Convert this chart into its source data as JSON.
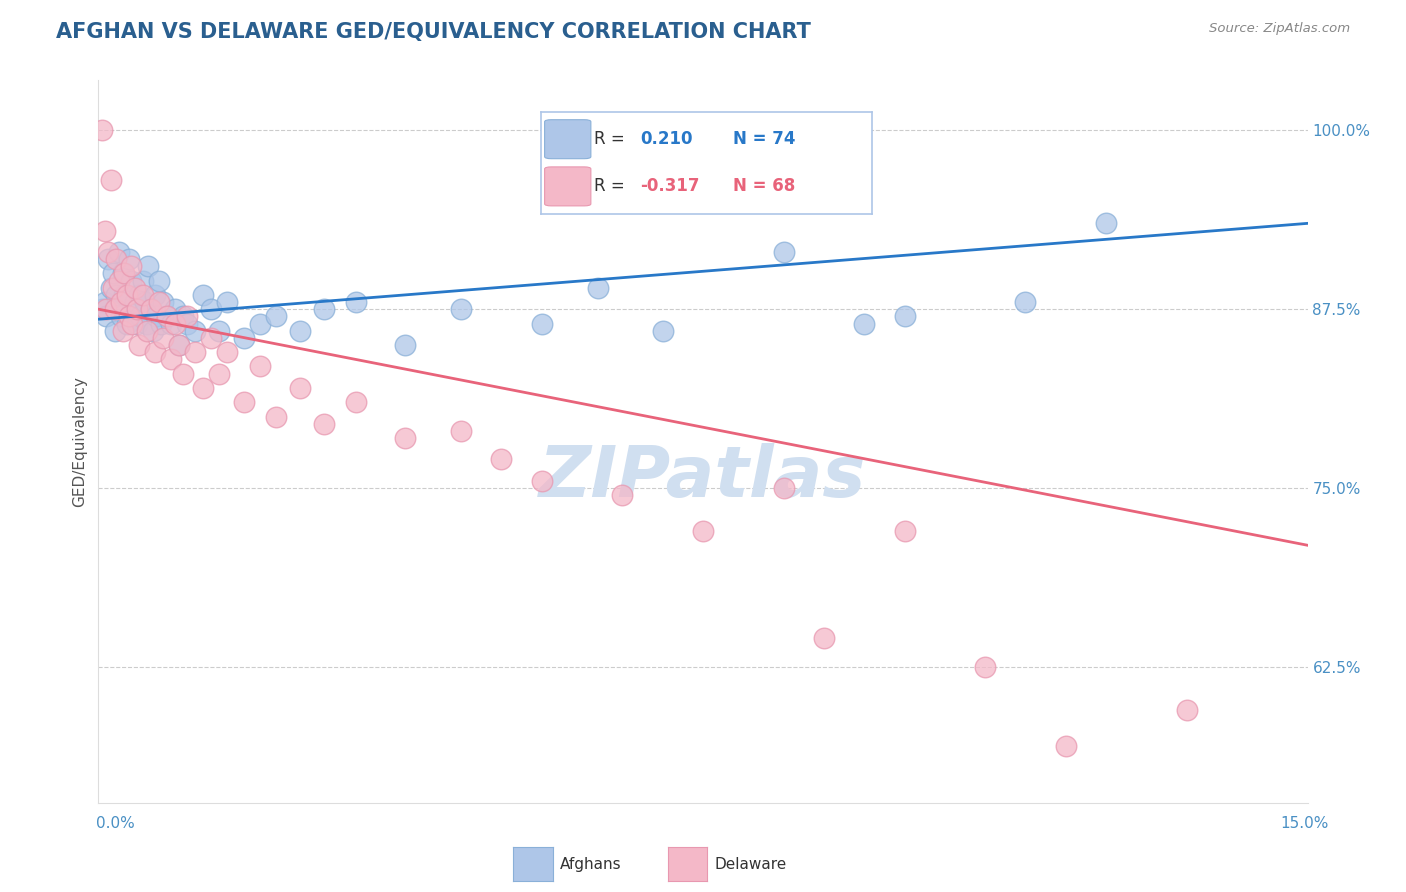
{
  "title": "AFGHAN VS DELAWARE GED/EQUIVALENCY CORRELATION CHART",
  "source": "Source: ZipAtlas.com",
  "ylabel": "GED/Equivalency",
  "r_afghan": 0.21,
  "n_afghan": 74,
  "r_delaware": -0.317,
  "n_delaware": 68,
  "x_min": 0.0,
  "x_max": 15.0,
  "y_min": 53.0,
  "y_max": 103.5,
  "yticks": [
    62.5,
    75.0,
    87.5,
    100.0
  ],
  "ytick_labels": [
    "62.5%",
    "75.0%",
    "87.5%",
    "100.0%"
  ],
  "background_color": "#ffffff",
  "title_color": "#2a5f8f",
  "source_color": "#888888",
  "afghan_color": "#aec6e8",
  "afghan_edge_color": "#8ab0d8",
  "afghan_line_color": "#2878c8",
  "delaware_color": "#f4b8c8",
  "delaware_edge_color": "#e898b0",
  "delaware_line_color": "#e8637a",
  "grid_color": "#cccccc",
  "axis_label_color": "#4a90c4",
  "legend_border_color": "#aec6e8",
  "watermark_color": "#d0dff0",
  "afghan_scatter_x": [
    0.05,
    0.08,
    0.1,
    0.12,
    0.15,
    0.18,
    0.2,
    0.22,
    0.25,
    0.28,
    0.3,
    0.32,
    0.35,
    0.38,
    0.4,
    0.42,
    0.45,
    0.48,
    0.5,
    0.52,
    0.55,
    0.58,
    0.6,
    0.62,
    0.65,
    0.68,
    0.7,
    0.72,
    0.75,
    0.78,
    0.8,
    0.85,
    0.9,
    0.95,
    1.0,
    1.05,
    1.1,
    1.2,
    1.3,
    1.4,
    1.5,
    1.6,
    1.8,
    2.0,
    2.2,
    2.5,
    2.8,
    3.2,
    3.8,
    4.5,
    5.5,
    6.2,
    7.0,
    8.5,
    9.5,
    10.0,
    11.5,
    12.5
  ],
  "afghan_scatter_y": [
    87.5,
    88.0,
    87.0,
    91.0,
    89.0,
    90.0,
    86.0,
    88.5,
    91.5,
    87.0,
    90.0,
    88.5,
    86.5,
    91.0,
    89.5,
    87.5,
    88.0,
    86.5,
    88.5,
    87.0,
    89.5,
    88.0,
    86.5,
    90.5,
    87.5,
    86.0,
    88.5,
    87.0,
    89.5,
    86.5,
    88.0,
    87.0,
    86.5,
    87.5,
    85.0,
    87.0,
    86.5,
    86.0,
    88.5,
    87.5,
    86.0,
    88.0,
    85.5,
    86.5,
    87.0,
    86.0,
    87.5,
    88.0,
    85.0,
    87.5,
    86.5,
    89.0,
    86.0,
    91.5,
    86.5,
    87.0,
    88.0,
    93.5
  ],
  "delaware_scatter_x": [
    0.05,
    0.08,
    0.1,
    0.12,
    0.15,
    0.18,
    0.2,
    0.22,
    0.25,
    0.28,
    0.3,
    0.32,
    0.35,
    0.38,
    0.4,
    0.42,
    0.45,
    0.48,
    0.5,
    0.55,
    0.6,
    0.65,
    0.7,
    0.75,
    0.8,
    0.85,
    0.9,
    0.95,
    1.0,
    1.05,
    1.1,
    1.2,
    1.3,
    1.4,
    1.5,
    1.6,
    1.8,
    2.0,
    2.2,
    2.5,
    2.8,
    3.2,
    3.8,
    4.5,
    5.0,
    5.5,
    6.5,
    7.5,
    8.5,
    9.0,
    10.0,
    11.0,
    12.0,
    13.5
  ],
  "delaware_scatter_y": [
    100.0,
    93.0,
    87.5,
    91.5,
    96.5,
    89.0,
    87.5,
    91.0,
    89.5,
    88.0,
    86.0,
    90.0,
    88.5,
    87.0,
    90.5,
    86.5,
    89.0,
    87.5,
    85.0,
    88.5,
    86.0,
    87.5,
    84.5,
    88.0,
    85.5,
    87.0,
    84.0,
    86.5,
    85.0,
    83.0,
    87.0,
    84.5,
    82.0,
    85.5,
    83.0,
    84.5,
    81.0,
    83.5,
    80.0,
    82.0,
    79.5,
    81.0,
    78.5,
    79.0,
    77.0,
    75.5,
    74.5,
    72.0,
    75.0,
    64.5,
    72.0,
    62.5,
    57.0,
    59.5
  ],
  "afghan_line_x0": 0.0,
  "afghan_line_y0": 86.8,
  "afghan_line_x1": 15.0,
  "afghan_line_y1": 93.5,
  "delaware_line_x0": 0.0,
  "delaware_line_y0": 87.5,
  "delaware_line_x1": 15.0,
  "delaware_line_y1": 71.0
}
